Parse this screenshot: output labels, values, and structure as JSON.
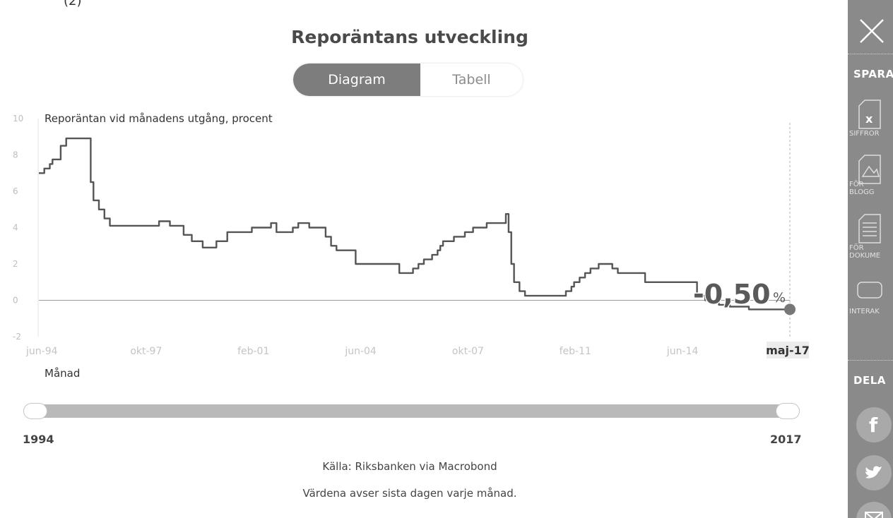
{
  "header": {
    "top_fragment": "(2)",
    "title": "Reporäntans utveckling"
  },
  "view_toggle": {
    "options": [
      "Diagram",
      "Tabell"
    ],
    "selected": "Diagram"
  },
  "chart_data": {
    "type": "line",
    "title": "Reporäntans utveckling",
    "ylabel": "Reporäntan vid månadens utgång, procent",
    "xlabel": "Månad",
    "ylim": [
      -2,
      10
    ],
    "yticks": [
      10,
      8,
      6,
      4,
      2,
      0,
      -2
    ],
    "xticks": [
      "jun-94",
      "okt-97",
      "feb-01",
      "jun-04",
      "okt-07",
      "feb-11",
      "jun-14",
      "maj-17"
    ],
    "x_range": [
      "1994-06",
      "2017-05"
    ],
    "current_value_label": "-0,50",
    "current_value_unit": "%",
    "grid": false,
    "series": [
      {
        "x": [
          "1994-06",
          "1994-07",
          "1994-08",
          "1994-09",
          "1994-10",
          "1994-11",
          "1994-12",
          "1995-02",
          "1995-04",
          "1995-07",
          "1995-08",
          "1996-01",
          "1996-02",
          "1996-04",
          "1996-06",
          "1996-08",
          "1996-10",
          "1996-12",
          "1997-06",
          "1998-02",
          "1998-06",
          "1998-11",
          "1999-02",
          "1999-06",
          "1999-11",
          "2000-03",
          "2000-06",
          "2000-12",
          "2001-07",
          "2001-09",
          "2002-03",
          "2002-05",
          "2002-09",
          "2003-03",
          "2003-05",
          "2003-07",
          "2003-10",
          "2004-02",
          "2004-04",
          "2005-06",
          "2005-11",
          "2006-01",
          "2006-03",
          "2006-06",
          "2006-08",
          "2006-09",
          "2006-10",
          "2007-02",
          "2007-06",
          "2007-09",
          "2008-02",
          "2008-09",
          "2008-10",
          "2008-11",
          "2008-12",
          "2009-02",
          "2009-04",
          "2009-07",
          "2010-07",
          "2010-09",
          "2010-10",
          "2010-12",
          "2011-02",
          "2011-04",
          "2011-07",
          "2011-12",
          "2012-02",
          "2012-07",
          "2012-12",
          "2013-10",
          "2014-07",
          "2014-10",
          "2015-02",
          "2015-03",
          "2015-07",
          "2016-02",
          "2017-05"
        ],
        "y": [
          7.0,
          7.0,
          7.25,
          7.25,
          7.5,
          7.75,
          7.75,
          8.5,
          8.91,
          8.91,
          8.91,
          6.5,
          5.5,
          5.0,
          4.5,
          4.1,
          4.1,
          4.1,
          4.1,
          4.35,
          4.1,
          3.6,
          3.25,
          2.9,
          3.25,
          3.75,
          3.75,
          4.0,
          4.25,
          3.75,
          4.0,
          4.25,
          4.0,
          3.5,
          3.0,
          2.75,
          2.75,
          2.0,
          2.0,
          1.5,
          1.75,
          2.0,
          2.25,
          2.5,
          2.75,
          3.0,
          3.25,
          3.5,
          3.75,
          4.0,
          4.25,
          4.75,
          3.75,
          2.0,
          1.0,
          0.5,
          0.25,
          0.25,
          0.5,
          0.75,
          1.0,
          1.25,
          1.5,
          1.75,
          2.0,
          1.75,
          1.5,
          1.5,
          1.0,
          1.0,
          0.25,
          0.0,
          -0.1,
          -0.25,
          -0.35,
          -0.5,
          -0.5
        ]
      }
    ]
  },
  "range_slider": {
    "start_year": "1994",
    "end_year": "2017",
    "start_fraction": 0.0,
    "end_fraction": 1.0
  },
  "footer": {
    "source": "Källa: Riksbanken via Macrobond",
    "note": "Värdena avser sista dagen varje månad."
  },
  "sidebar": {
    "save_label": "SPARA",
    "share_label": "DELA",
    "buttons": [
      {
        "icon": "excel-icon",
        "caption": "SIFFROR"
      },
      {
        "icon": "image-icon",
        "caption": "FÖR\nBLOGG"
      },
      {
        "icon": "document-icon",
        "caption": "FÖR\nDOKUME"
      },
      {
        "icon": "interactive-icon",
        "caption": "INTERAK"
      }
    ],
    "social": [
      "facebook-icon",
      "twitter-icon",
      "email-icon"
    ]
  },
  "colors": {
    "line": "#555555",
    "marker": "#777777",
    "toggle_active": "#7d7d7d",
    "sidebar": "#8a8a8a",
    "axis_tick": "#bdbdbd"
  }
}
